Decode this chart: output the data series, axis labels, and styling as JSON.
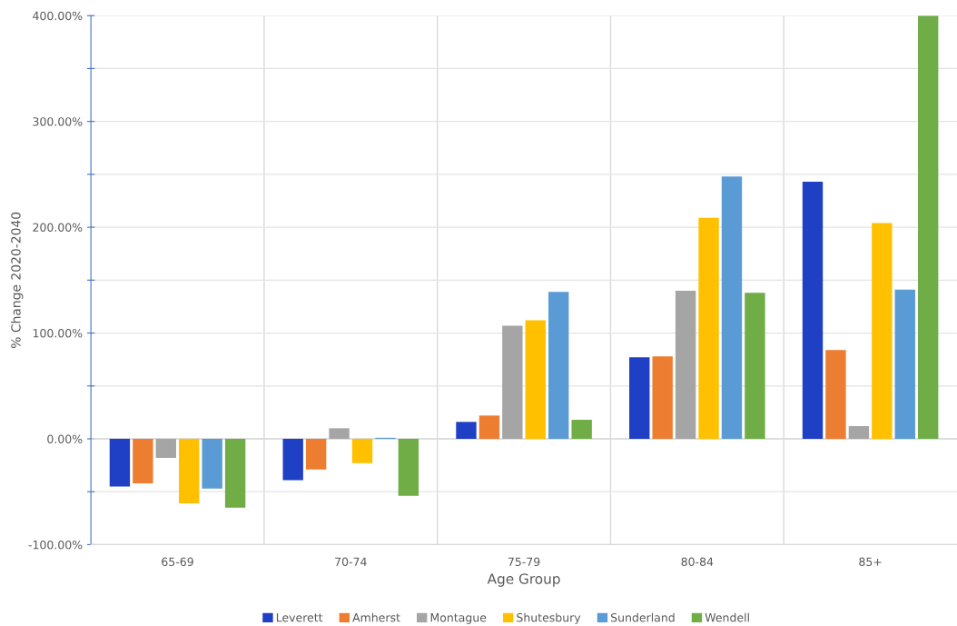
{
  "chart_data": {
    "type": "bar",
    "xlabel": "Age Group",
    "ylabel": "% Change 2020-2040",
    "categories": [
      "65-69",
      "70-74",
      "75-79",
      "80-84",
      "85+"
    ],
    "series": [
      {
        "name": "Leverett",
        "color": "#1f3fc4",
        "values": [
          -45,
          -39,
          16,
          77,
          243
        ]
      },
      {
        "name": "Amherst",
        "color": "#ed7d31",
        "values": [
          -42,
          -29,
          22,
          78,
          84
        ]
      },
      {
        "name": "Montague",
        "color": "#a5a5a5",
        "values": [
          -18,
          10,
          107,
          140,
          12
        ]
      },
      {
        "name": "Shutesbury",
        "color": "#ffc000",
        "values": [
          -61,
          -23,
          112,
          209,
          204
        ]
      },
      {
        "name": "Sunderland",
        "color": "#5b9bd5",
        "values": [
          -47,
          1,
          139,
          248,
          141
        ]
      },
      {
        "name": "Wendell",
        "color": "#70ad47",
        "values": [
          -65,
          -54,
          18,
          138,
          400
        ]
      }
    ],
    "ylim": [
      -100,
      400
    ],
    "yticks": [
      {
        "value": -100,
        "label": "-100.00%"
      },
      {
        "value": -50,
        "label": null
      },
      {
        "value": 0,
        "label": "0.00%"
      },
      {
        "value": 50,
        "label": null
      },
      {
        "value": 100,
        "label": "100.00%"
      },
      {
        "value": 150,
        "label": null
      },
      {
        "value": 200,
        "label": "200.00%"
      },
      {
        "value": 250,
        "label": null
      },
      {
        "value": 300,
        "label": "300.00%"
      },
      {
        "value": 350,
        "label": null
      },
      {
        "value": 400,
        "label": "400.00%"
      }
    ],
    "grid": true,
    "legend": "bottom"
  }
}
